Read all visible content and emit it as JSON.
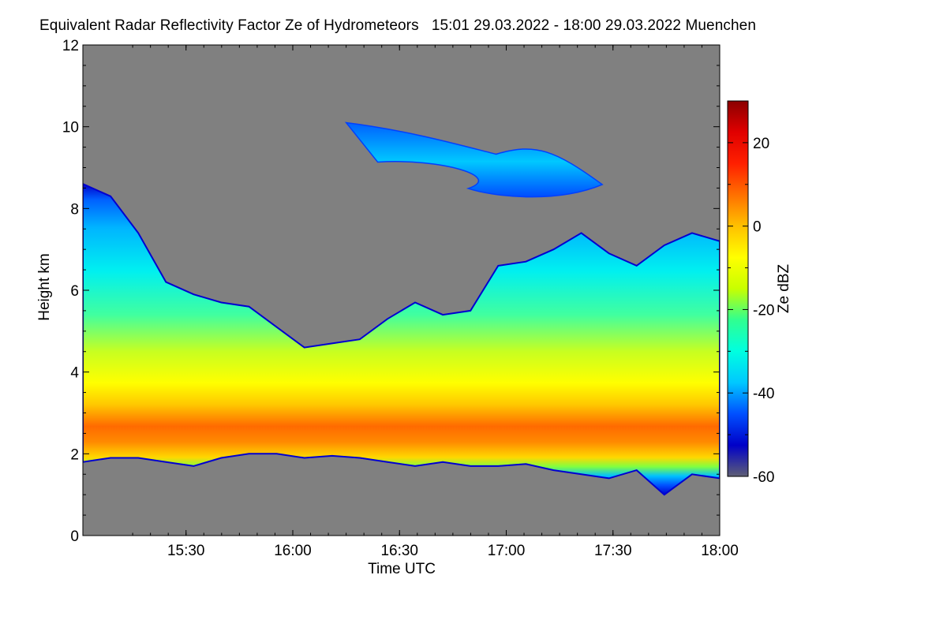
{
  "chart_data": {
    "type": "heatmap",
    "title": "Equivalent Radar Reflectivity Factor Ze of Hydrometeors",
    "time_range": "15:01 29.03.2022 - 18:00 29.03.2022",
    "location": "Muenchen",
    "xlabel": "Time UTC",
    "ylabel": "Height km",
    "colorbar_label": "Ze dBZ",
    "x_tick_labels": [
      "15:30",
      "16:00",
      "16:30",
      "17:00",
      "17:30",
      "18:00"
    ],
    "x_tick_hours": [
      15.5,
      16.0,
      16.5,
      17.0,
      17.5,
      18.0
    ],
    "xlim_hours": [
      15.0167,
      18.0
    ],
    "y_ticks": [
      0,
      2,
      4,
      6,
      8,
      10,
      12
    ],
    "ylim": [
      0,
      12
    ],
    "colorbar_ticks": [
      20,
      0,
      -20,
      -40,
      -60
    ],
    "colorbar_range": [
      -60,
      30
    ],
    "no_data_color": "#808080",
    "colormap": [
      "#5f5f75",
      "#0000c8",
      "#0050ff",
      "#00c8ff",
      "#00ffe0",
      "#30ff90",
      "#c8ff00",
      "#ffff00",
      "#ffc000",
      "#ff7000",
      "#ff2000",
      "#e00000",
      "#8b0000"
    ],
    "cloud_main": {
      "top_km": [
        8.6,
        8.3,
        7.4,
        6.2,
        5.9,
        5.7,
        5.6,
        5.1,
        4.6,
        4.7,
        4.8,
        5.3,
        5.7,
        5.4,
        5.5,
        6.6,
        6.7,
        7.0,
        7.4,
        6.9,
        6.6,
        7.1,
        7.4,
        7.2
      ],
      "base_km": [
        1.8,
        1.9,
        1.9,
        1.8,
        1.7,
        1.9,
        2.0,
        2.0,
        1.9,
        1.95,
        1.9,
        1.8,
        1.7,
        1.8,
        1.7,
        1.7,
        1.75,
        1.6,
        1.5,
        1.4,
        1.6,
        1.0,
        1.5,
        1.4
      ]
    },
    "cirrus_layer": {
      "x_hours": [
        16.25,
        17.45
      ],
      "top_km": 10.1,
      "base_km": 8.2
    }
  }
}
